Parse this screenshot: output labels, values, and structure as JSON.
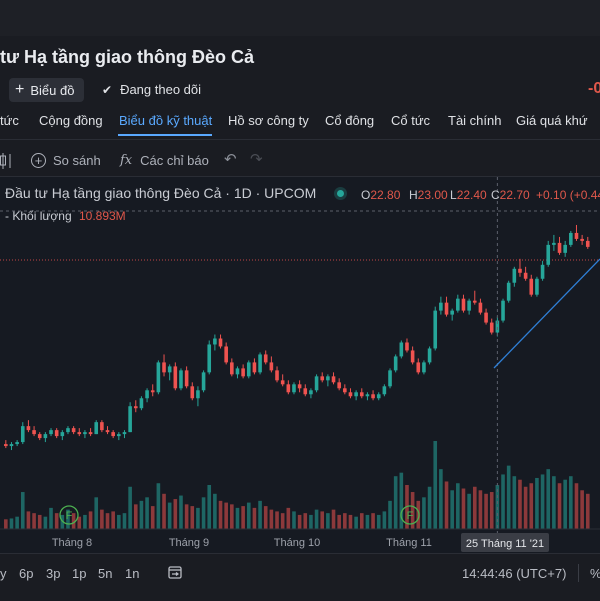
{
  "header": {
    "title": "tư Hạ tầng giao thông Đèo Cả",
    "chart_button": "Biểu đồ",
    "follow_label": "Đang theo dõi",
    "price_change_partial": "-0"
  },
  "tabs": [
    {
      "label": "tức",
      "active": false
    },
    {
      "label": "Cộng đồng",
      "active": false
    },
    {
      "label": "Biểu đồ kỹ thuật",
      "active": true
    },
    {
      "label": "Hồ sơ công ty",
      "active": false
    },
    {
      "label": "Cổ đông",
      "active": false
    },
    {
      "label": "Cổ tức",
      "active": false
    },
    {
      "label": "Tài chính",
      "active": false
    },
    {
      "label": "Giá quá khứ",
      "active": false
    }
  ],
  "toolbar": {
    "compare_label": "So sánh",
    "indicators_label": "Các chỉ báo"
  },
  "legend": {
    "symbol_text": "Đầu tư Hạ tầng giao thông Đèo Cả · 1D · UPCOM",
    "open_key": "O",
    "open": "22.80",
    "high_key": "H",
    "high": "23.00",
    "low_key": "L",
    "low": "22.40",
    "close_key": "C",
    "close": "22.70",
    "change": "+0.10 (+0.44",
    "volume_label": "Khối lượng",
    "volume_value": "10.893M"
  },
  "colors": {
    "up": "#26a69a",
    "down": "#ef5350",
    "accent": "#5aa9ff",
    "trendline": "#2f7fd6"
  },
  "chart_data": {
    "type": "candlestick",
    "x_labels": [
      "Tháng 8",
      "Tháng 9",
      "Tháng 10",
      "Tháng 11"
    ],
    "crosshair_label": "25 Tháng 11 '21",
    "markers": [
      "F",
      "F"
    ],
    "candles": [
      [
        14.4,
        14.6,
        14.2,
        14.3
      ],
      [
        14.3,
        14.5,
        14.1,
        14.4
      ],
      [
        14.4,
        14.6,
        14.3,
        14.5
      ],
      [
        14.5,
        15.5,
        14.4,
        15.3
      ],
      [
        15.3,
        15.6,
        15.0,
        15.1
      ],
      [
        15.1,
        15.3,
        14.8,
        14.9
      ],
      [
        14.9,
        15.0,
        14.6,
        14.7
      ],
      [
        14.7,
        15.0,
        14.5,
        14.9
      ],
      [
        14.9,
        15.2,
        14.8,
        15.1
      ],
      [
        15.1,
        15.2,
        14.7,
        14.8
      ],
      [
        14.8,
        15.1,
        14.6,
        15.0
      ],
      [
        15.0,
        15.3,
        14.9,
        15.2
      ],
      [
        15.2,
        15.3,
        14.9,
        15.0
      ],
      [
        15.0,
        15.2,
        14.8,
        14.9
      ],
      [
        14.9,
        15.1,
        14.7,
        15.0
      ],
      [
        15.0,
        15.2,
        14.8,
        14.9
      ],
      [
        14.9,
        15.6,
        14.9,
        15.5
      ],
      [
        15.5,
        15.6,
        15.0,
        15.1
      ],
      [
        15.1,
        15.3,
        14.9,
        15.0
      ],
      [
        15.0,
        15.1,
        14.7,
        14.8
      ],
      [
        14.8,
        15.0,
        14.6,
        14.9
      ],
      [
        14.9,
        15.1,
        14.7,
        15.0
      ],
      [
        15.0,
        16.5,
        15.0,
        16.3
      ],
      [
        16.3,
        16.6,
        16.0,
        16.2
      ],
      [
        16.2,
        16.8,
        16.1,
        16.7
      ],
      [
        16.7,
        17.2,
        16.5,
        17.1
      ],
      [
        17.1,
        17.4,
        16.8,
        17.0
      ],
      [
        17.0,
        18.6,
        16.9,
        18.5
      ],
      [
        18.5,
        18.9,
        17.8,
        18.0
      ],
      [
        18.0,
        18.4,
        17.6,
        18.3
      ],
      [
        18.3,
        18.5,
        17.1,
        17.2
      ],
      [
        17.2,
        18.2,
        17.1,
        18.1
      ],
      [
        18.1,
        18.3,
        17.2,
        17.3
      ],
      [
        17.3,
        17.5,
        16.6,
        16.7
      ],
      [
        16.7,
        17.3,
        16.3,
        17.1
      ],
      [
        17.1,
        18.1,
        17.0,
        18.0
      ],
      [
        18.0,
        19.6,
        17.9,
        19.4
      ],
      [
        19.4,
        19.9,
        19.1,
        19.7
      ],
      [
        19.7,
        19.9,
        19.2,
        19.3
      ],
      [
        19.3,
        19.5,
        18.4,
        18.5
      ],
      [
        18.5,
        18.7,
        17.8,
        17.9
      ],
      [
        17.9,
        18.3,
        17.7,
        18.2
      ],
      [
        18.2,
        18.4,
        17.7,
        17.8
      ],
      [
        17.8,
        18.6,
        17.7,
        18.5
      ],
      [
        18.5,
        18.7,
        17.9,
        18.0
      ],
      [
        18.0,
        19.0,
        17.9,
        18.9
      ],
      [
        18.9,
        19.1,
        18.4,
        18.5
      ],
      [
        18.5,
        18.8,
        18.0,
        18.1
      ],
      [
        18.1,
        18.3,
        17.5,
        17.6
      ],
      [
        17.6,
        17.9,
        17.3,
        17.4
      ],
      [
        17.4,
        17.6,
        16.9,
        17.0
      ],
      [
        17.0,
        17.5,
        16.9,
        17.4
      ],
      [
        17.4,
        17.6,
        17.0,
        17.2
      ],
      [
        17.2,
        17.4,
        16.8,
        16.9
      ],
      [
        16.9,
        17.2,
        16.7,
        17.1
      ],
      [
        17.1,
        17.9,
        17.0,
        17.8
      ],
      [
        17.8,
        18.0,
        17.5,
        17.6
      ],
      [
        17.6,
        17.9,
        17.3,
        17.8
      ],
      [
        17.8,
        18.0,
        17.4,
        17.5
      ],
      [
        17.5,
        17.7,
        17.1,
        17.2
      ],
      [
        17.2,
        17.4,
        16.9,
        17.0
      ],
      [
        17.0,
        17.2,
        16.7,
        16.8
      ],
      [
        16.8,
        17.1,
        16.6,
        17.0
      ],
      [
        17.0,
        17.2,
        16.7,
        16.8
      ],
      [
        16.8,
        17.0,
        16.6,
        16.9
      ],
      [
        16.9,
        17.1,
        16.6,
        16.7
      ],
      [
        16.7,
        17.0,
        16.6,
        16.9
      ],
      [
        16.9,
        17.4,
        16.8,
        17.3
      ],
      [
        17.3,
        18.2,
        17.2,
        18.1
      ],
      [
        18.1,
        18.9,
        18.0,
        18.8
      ],
      [
        18.8,
        19.6,
        18.7,
        19.5
      ],
      [
        19.5,
        19.7,
        19.0,
        19.1
      ],
      [
        19.1,
        19.3,
        18.4,
        18.5
      ],
      [
        18.5,
        18.7,
        17.9,
        18.0
      ],
      [
        18.0,
        18.6,
        17.9,
        18.5
      ],
      [
        18.5,
        19.3,
        18.4,
        19.2
      ],
      [
        19.2,
        21.3,
        19.1,
        21.1
      ],
      [
        21.1,
        21.8,
        20.9,
        21.5
      ],
      [
        21.5,
        21.8,
        20.8,
        20.9
      ],
      [
        20.9,
        21.2,
        20.6,
        21.1
      ],
      [
        21.1,
        21.9,
        21.0,
        21.7
      ],
      [
        21.7,
        21.9,
        21.0,
        21.1
      ],
      [
        21.1,
        21.7,
        20.9,
        21.6
      ],
      [
        21.6,
        22.1,
        21.4,
        21.5
      ],
      [
        21.5,
        21.7,
        20.9,
        21.0
      ],
      [
        21.0,
        21.2,
        20.4,
        20.5
      ],
      [
        20.5,
        20.7,
        19.9,
        20.0
      ],
      [
        20.0,
        20.8,
        19.8,
        20.6
      ],
      [
        20.6,
        21.7,
        20.5,
        21.6
      ],
      [
        21.6,
        22.6,
        21.5,
        22.5
      ],
      [
        22.5,
        23.3,
        22.3,
        23.2
      ],
      [
        23.2,
        23.7,
        22.8,
        23.0
      ],
      [
        23.0,
        23.3,
        22.6,
        22.7
      ],
      [
        22.7,
        22.9,
        21.8,
        21.9
      ],
      [
        21.9,
        22.8,
        21.8,
        22.7
      ],
      [
        22.7,
        23.6,
        22.6,
        23.4
      ],
      [
        23.4,
        24.6,
        23.3,
        24.4
      ],
      [
        24.4,
        24.9,
        24.1,
        24.5
      ],
      [
        24.5,
        24.8,
        23.9,
        24.0
      ],
      [
        24.0,
        24.6,
        23.8,
        24.4
      ],
      [
        24.4,
        25.1,
        24.3,
        25.0
      ],
      [
        25.0,
        25.4,
        24.6,
        24.7
      ],
      [
        24.7,
        24.9,
        24.4,
        24.6
      ],
      [
        24.6,
        24.8,
        24.2,
        24.3
      ]
    ],
    "volumes": [
      0.55,
      0.6,
      0.7,
      2.1,
      1.0,
      0.9,
      0.8,
      0.7,
      1.2,
      0.9,
      0.8,
      1.1,
      0.9,
      0.7,
      0.8,
      1.0,
      1.8,
      1.1,
      0.9,
      1.0,
      0.8,
      0.9,
      2.4,
      1.4,
      1.6,
      1.8,
      1.3,
      2.6,
      2.0,
      1.5,
      1.7,
      1.9,
      1.4,
      1.3,
      1.2,
      1.8,
      2.5,
      2.0,
      1.6,
      1.5,
      1.4,
      1.2,
      1.3,
      1.5,
      1.2,
      1.6,
      1.3,
      1.1,
      1.0,
      0.9,
      1.2,
      1.0,
      0.8,
      0.9,
      0.8,
      1.1,
      1.0,
      0.9,
      1.1,
      0.8,
      0.9,
      0.8,
      0.7,
      0.9,
      0.8,
      0.9,
      0.8,
      1.0,
      1.6,
      3.0,
      3.2,
      2.5,
      2.1,
      1.6,
      1.8,
      2.4,
      5.0,
      3.4,
      2.7,
      2.2,
      2.6,
      2.3,
      2.0,
      2.4,
      2.2,
      2.0,
      2.1,
      2.5,
      3.1,
      3.6,
      3.0,
      2.8,
      2.4,
      2.6,
      2.9,
      3.1,
      3.4,
      3.0,
      2.6,
      2.8,
      3.0,
      2.6,
      2.2,
      2.0
    ]
  },
  "bottombar": {
    "ranges": [
      "y",
      "6p",
      "3p",
      "1p",
      "5n",
      "1n"
    ],
    "time": "14:44:46 (UTC+7)",
    "pct": "%"
  }
}
